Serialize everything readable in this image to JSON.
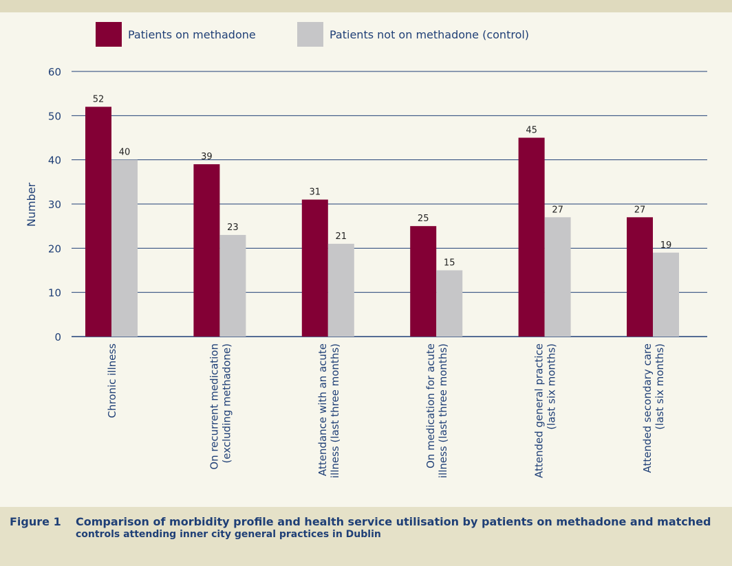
{
  "figure": {
    "label": "Figure 1",
    "caption_line1": "Comparison of morbidity profile and health service utilisation by patients on methadone and matched",
    "caption_line2": "controls attending inner city general practices in Dublin"
  },
  "colors": {
    "methadone": "#830035",
    "control": "#c6c6c8",
    "axis": "#1f3f76",
    "panel": "#f7f6ec"
  },
  "chart_data": {
    "type": "bar",
    "title": "",
    "ylabel": "Number",
    "xlabel": "",
    "ylim": [
      0,
      60
    ],
    "yticks": [
      0,
      10,
      20,
      30,
      40,
      50,
      60
    ],
    "grid": true,
    "legend_position": "top",
    "categories": [
      [
        "Chronic illness"
      ],
      [
        "On recurrent medication",
        "(excluding methadone)"
      ],
      [
        "Attendance with an acute",
        "illness (last three months)"
      ],
      [
        "On medication for acute",
        "illness (last three months)"
      ],
      [
        "Attended general practice",
        "(last six months)"
      ],
      [
        "Attended secondary care",
        "(last six months)"
      ]
    ],
    "series": [
      {
        "name": "Patients on methadone",
        "values": [
          52,
          39,
          31,
          25,
          45,
          27
        ]
      },
      {
        "name": "Patients not on methadone (control)",
        "values": [
          40,
          23,
          21,
          15,
          27,
          19
        ]
      }
    ]
  }
}
